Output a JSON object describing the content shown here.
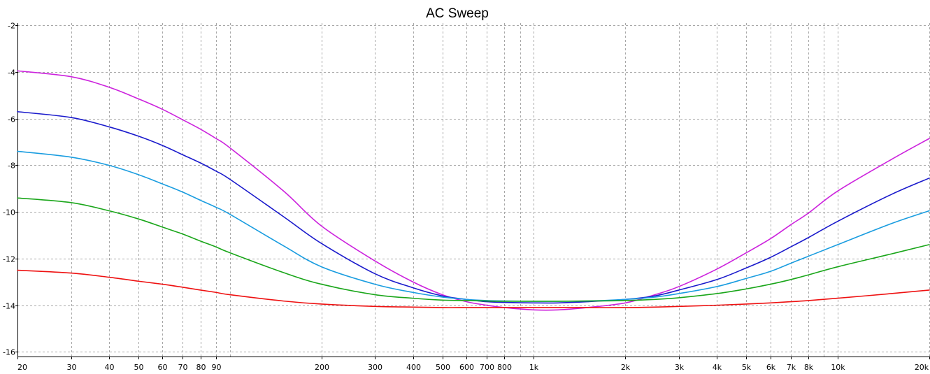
{
  "chart_data": {
    "type": "line",
    "title": "AC Sweep",
    "xlabel": "",
    "ylabel": "",
    "x_scale": "log",
    "xlim": [
      20,
      20000
    ],
    "ylim": [
      -16.2,
      -1.9
    ],
    "grid": true,
    "legend": "none",
    "x_ticks": [
      {
        "value": 20,
        "label": "20"
      },
      {
        "value": 30,
        "label": "30"
      },
      {
        "value": 40,
        "label": "40"
      },
      {
        "value": 50,
        "label": "50"
      },
      {
        "value": 60,
        "label": "60"
      },
      {
        "value": 70,
        "label": "70"
      },
      {
        "value": 80,
        "label": "80"
      },
      {
        "value": 90,
        "label": "90"
      },
      {
        "value": 200,
        "label": "200"
      },
      {
        "value": 300,
        "label": "300"
      },
      {
        "value": 400,
        "label": "400"
      },
      {
        "value": 500,
        "label": "500"
      },
      {
        "value": 600,
        "label": "600"
      },
      {
        "value": 700,
        "label": "700"
      },
      {
        "value": 800,
        "label": "800"
      },
      {
        "value": 1000,
        "label": "1k"
      },
      {
        "value": 2000,
        "label": "2k"
      },
      {
        "value": 3000,
        "label": "3k"
      },
      {
        "value": 4000,
        "label": "4k"
      },
      {
        "value": 5000,
        "label": "5k"
      },
      {
        "value": 6000,
        "label": "6k"
      },
      {
        "value": 7000,
        "label": "7k"
      },
      {
        "value": 8000,
        "label": "8k"
      },
      {
        "value": 10000,
        "label": "10k"
      },
      {
        "value": 20000,
        "label": "20k"
      }
    ],
    "x_grid": [
      20,
      30,
      40,
      50,
      60,
      70,
      80,
      90,
      100,
      200,
      300,
      400,
      500,
      600,
      700,
      800,
      900,
      1000,
      2000,
      3000,
      4000,
      5000,
      6000,
      7000,
      8000,
      9000,
      10000,
      20000
    ],
    "y_ticks": [
      {
        "value": -2,
        "label": "-2"
      },
      {
        "value": -4,
        "label": "-4"
      },
      {
        "value": -6,
        "label": "-6"
      },
      {
        "value": -8,
        "label": "-8"
      },
      {
        "value": -10,
        "label": "-10"
      },
      {
        "value": -12,
        "label": "-12"
      },
      {
        "value": -14,
        "label": "-14"
      },
      {
        "value": -16,
        "label": "-16"
      }
    ],
    "x": [
      20,
      30,
      40,
      50,
      60,
      70,
      80,
      90,
      100,
      150,
      200,
      300,
      400,
      500,
      600,
      700,
      800,
      1000,
      1200,
      1500,
      2000,
      2500,
      3000,
      4000,
      5000,
      6000,
      7000,
      8000,
      10000,
      15000,
      20000
    ],
    "series": [
      {
        "color": "#cc22dd",
        "values": [
          -3.95,
          -4.2,
          -4.65,
          -5.15,
          -5.6,
          -6.05,
          -6.45,
          -6.85,
          -7.25,
          -9.1,
          -10.6,
          -12.1,
          -13.0,
          -13.55,
          -13.85,
          -14.0,
          -14.1,
          -14.2,
          -14.2,
          -14.1,
          -13.9,
          -13.55,
          -13.2,
          -12.45,
          -11.75,
          -11.15,
          -10.55,
          -10.05,
          -9.1,
          -7.75,
          -6.85
        ]
      },
      {
        "color": "#1a1acc",
        "values": [
          -5.7,
          -5.95,
          -6.35,
          -6.75,
          -7.15,
          -7.55,
          -7.9,
          -8.25,
          -8.6,
          -10.2,
          -11.35,
          -12.65,
          -13.25,
          -13.6,
          -13.75,
          -13.85,
          -13.88,
          -13.9,
          -13.9,
          -13.85,
          -13.75,
          -13.6,
          -13.35,
          -12.9,
          -12.4,
          -11.95,
          -11.5,
          -11.1,
          -10.4,
          -9.25,
          -8.55
        ]
      },
      {
        "color": "#1a9de0",
        "values": [
          -7.4,
          -7.65,
          -8.0,
          -8.4,
          -8.8,
          -9.15,
          -9.5,
          -9.8,
          -10.1,
          -11.45,
          -12.35,
          -13.1,
          -13.45,
          -13.65,
          -13.75,
          -13.8,
          -13.82,
          -13.83,
          -13.83,
          -13.82,
          -13.75,
          -13.65,
          -13.5,
          -13.2,
          -12.85,
          -12.55,
          -12.2,
          -11.9,
          -11.4,
          -10.5,
          -9.95
        ]
      },
      {
        "color": "#1aa61a",
        "values": [
          -9.4,
          -9.6,
          -9.95,
          -10.3,
          -10.65,
          -10.95,
          -11.25,
          -11.5,
          -11.75,
          -12.6,
          -13.1,
          -13.55,
          -13.7,
          -13.78,
          -13.8,
          -13.82,
          -13.83,
          -13.83,
          -13.83,
          -13.82,
          -13.8,
          -13.75,
          -13.68,
          -13.5,
          -13.3,
          -13.1,
          -12.9,
          -12.7,
          -12.35,
          -11.8,
          -11.4
        ]
      },
      {
        "color": "#ee1111",
        "values": [
          -12.5,
          -12.62,
          -12.8,
          -12.97,
          -13.1,
          -13.23,
          -13.35,
          -13.45,
          -13.55,
          -13.82,
          -13.95,
          -14.05,
          -14.08,
          -14.1,
          -14.1,
          -14.1,
          -14.1,
          -14.1,
          -14.1,
          -14.1,
          -14.1,
          -14.08,
          -14.05,
          -14.0,
          -13.95,
          -13.9,
          -13.85,
          -13.8,
          -13.7,
          -13.5,
          -13.35
        ]
      }
    ]
  }
}
